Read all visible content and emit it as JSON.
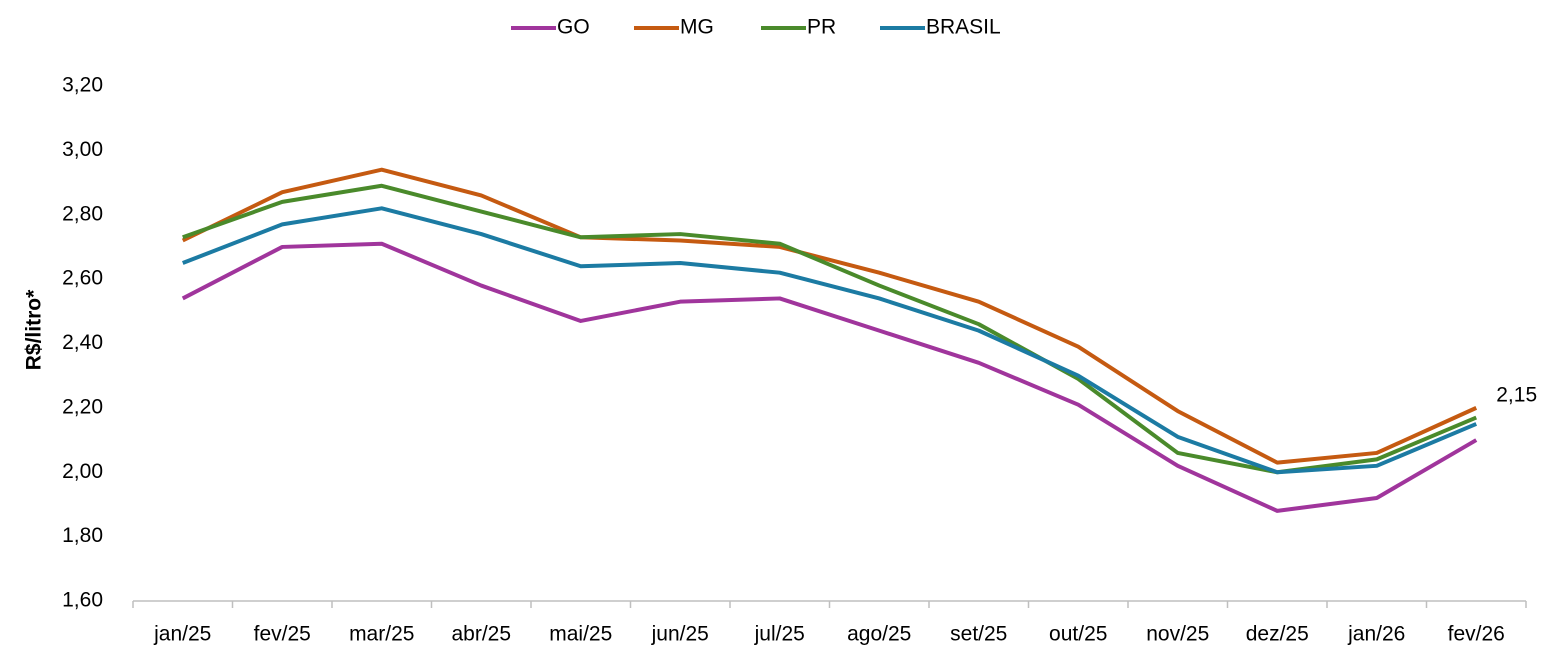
{
  "chart_data": {
    "type": "line",
    "y_label": "R$/litro*",
    "categories": [
      "jan/25",
      "fev/25",
      "mar/25",
      "abr/25",
      "mai/25",
      "jun/25",
      "jul/25",
      "ago/25",
      "set/25",
      "out/25",
      "nov/25",
      "dez/25",
      "jan/26",
      "fev/26"
    ],
    "series": [
      {
        "name": "GO",
        "color": "#a0359c",
        "values": [
          2.54,
          2.7,
          2.71,
          2.58,
          2.47,
          2.53,
          2.54,
          2.44,
          2.34,
          2.21,
          2.02,
          1.88,
          1.92,
          2.1
        ]
      },
      {
        "name": "MG",
        "color": "#c55a11",
        "values": [
          2.72,
          2.87,
          2.94,
          2.86,
          2.73,
          2.72,
          2.7,
          2.62,
          2.53,
          2.39,
          2.19,
          2.03,
          2.06,
          2.2
        ]
      },
      {
        "name": "PR",
        "color": "#4a8a2b",
        "values": [
          2.73,
          2.84,
          2.89,
          2.81,
          2.73,
          2.74,
          2.71,
          2.58,
          2.46,
          2.29,
          2.06,
          2.0,
          2.04,
          2.17
        ]
      },
      {
        "name": "BRASIL",
        "color": "#1c7ba3",
        "values": [
          2.65,
          2.77,
          2.82,
          2.74,
          2.64,
          2.65,
          2.62,
          2.54,
          2.44,
          2.3,
          2.11,
          2.0,
          2.02,
          2.15
        ],
        "value_labels": [
          null,
          null,
          null,
          null,
          null,
          null,
          null,
          null,
          null,
          null,
          null,
          null,
          null,
          "2,15"
        ]
      }
    ],
    "ylim": [
      1.6,
      3.2
    ],
    "yticks": [
      {
        "value": 1.6,
        "label": "1,60"
      },
      {
        "value": 1.8,
        "label": "1,80"
      },
      {
        "value": 2.0,
        "label": "2,00"
      },
      {
        "value": 2.2,
        "label": "2,20"
      },
      {
        "value": 2.4,
        "label": "2,40"
      },
      {
        "value": 2.6,
        "label": "2,60"
      },
      {
        "value": 2.8,
        "label": "2,80"
      },
      {
        "value": 3.0,
        "label": "3,00"
      },
      {
        "value": 3.2,
        "label": "3,20"
      }
    ],
    "legend": "top",
    "grid": false
  }
}
